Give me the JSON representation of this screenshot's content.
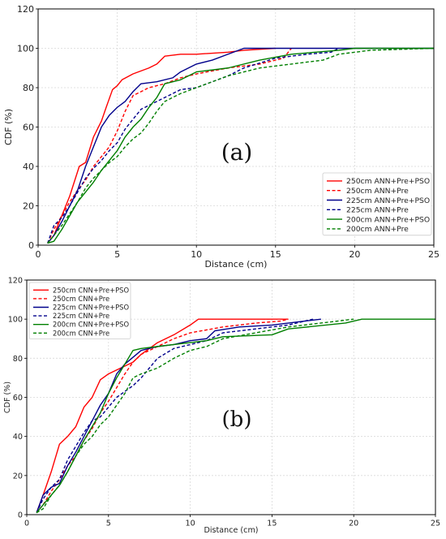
{
  "chart_data": [
    {
      "type": "line",
      "panel_label": "(a)",
      "xlabel": "Distance (cm)",
      "ylabel": "CDF (%)",
      "xlim": [
        0,
        25
      ],
      "ylim": [
        0,
        120
      ],
      "xticks": [
        "0",
        "5",
        "10",
        "15",
        "20",
        "25"
      ],
      "yticks": [
        "0",
        "20",
        "40",
        "60",
        "80",
        "100",
        "120"
      ],
      "grid": true,
      "legend_position": "right",
      "series": [
        {
          "name": "250cm ANN+Pre+PSO",
          "color": "#ff0000",
          "dash": "solid",
          "x": [
            0.6,
            1.0,
            1.5,
            2.0,
            2.6,
            3.0,
            3.5,
            4.0,
            4.3,
            4.7,
            5.0,
            5.3,
            6.0,
            7.0,
            7.5,
            8.0,
            9.0,
            10.0,
            12.0,
            13.0,
            15.0
          ],
          "y": [
            1,
            5,
            15,
            25,
            40,
            42,
            55,
            63,
            70,
            79,
            81,
            84,
            87,
            90,
            92,
            96,
            97,
            97,
            98,
            99,
            100
          ]
        },
        {
          "name": "250cm ANN+Pre",
          "color": "#ff0000",
          "dash": "dashed",
          "x": [
            0.6,
            1.0,
            1.5,
            2.0,
            2.5,
            3.0,
            3.5,
            4.0,
            4.5,
            5.0,
            5.5,
            6.0,
            7.0,
            8.0,
            9.0,
            10.0,
            12.0,
            14.0,
            15.5,
            16.0
          ],
          "y": [
            1,
            8,
            15,
            22,
            28,
            33,
            40,
            45,
            50,
            58,
            68,
            76,
            80,
            82,
            85,
            87,
            90,
            92,
            95,
            100
          ]
        },
        {
          "name": "225cm ANN+Pre+PSO",
          "color": "#00008b",
          "dash": "solid",
          "x": [
            0.6,
            1.0,
            1.5,
            2.0,
            2.5,
            3.0,
            3.5,
            4.0,
            4.5,
            5.0,
            5.5,
            6.0,
            6.5,
            7.5,
            8.5,
            9.0,
            10.0,
            11.0,
            12.0,
            13.0,
            20.0,
            25.0
          ],
          "y": [
            1,
            5,
            12,
            20,
            28,
            40,
            50,
            60,
            66,
            70,
            73,
            78,
            82,
            83,
            85,
            88,
            92,
            94,
            97,
            100,
            100,
            100
          ]
        },
        {
          "name": "225cm ANN+Pre",
          "color": "#00008b",
          "dash": "dashed",
          "x": [
            0.6,
            1.0,
            1.5,
            2.0,
            2.5,
            3.0,
            3.5,
            4.0,
            4.5,
            5.0,
            5.5,
            6.0,
            6.5,
            7.0,
            8.0,
            9.0,
            10.0,
            12.0,
            13.0,
            15.0,
            17.0,
            18.5,
            19.0
          ],
          "y": [
            1,
            10,
            14,
            20,
            27,
            34,
            39,
            43,
            48,
            52,
            59,
            64,
            69,
            71,
            75,
            79,
            80,
            86,
            90,
            95,
            97,
            98,
            100
          ]
        },
        {
          "name": "200cm ANN+Pre+PSO",
          "color": "#007f00",
          "dash": "solid",
          "x": [
            0.6,
            1.0,
            1.5,
            2.0,
            2.5,
            3.0,
            3.5,
            4.0,
            4.5,
            5.0,
            5.5,
            6.0,
            6.5,
            7.0,
            7.5,
            8.0,
            9.0,
            10.0,
            12.0,
            14.0,
            16.0,
            19.0,
            20.0,
            25.0
          ],
          "y": [
            1,
            2,
            8,
            15,
            22,
            27,
            32,
            38,
            43,
            48,
            55,
            60,
            64,
            70,
            75,
            82,
            84,
            88,
            90,
            94,
            97,
            99,
            100,
            100
          ]
        },
        {
          "name": "200cm ANN+Pre",
          "color": "#007f00",
          "dash": "dashed",
          "x": [
            0.6,
            1.0,
            1.5,
            2.0,
            2.5,
            3.0,
            3.5,
            4.0,
            4.5,
            5.0,
            5.5,
            6.0,
            6.5,
            7.0,
            7.5,
            8.0,
            9.0,
            10.0,
            12.0,
            14.0,
            16.0,
            18.0,
            19.0,
            21.0,
            25.0
          ],
          "y": [
            1,
            5,
            10,
            16,
            22,
            29,
            34,
            38,
            42,
            45,
            50,
            54,
            57,
            62,
            68,
            73,
            77,
            80,
            86,
            90,
            92,
            94,
            97,
            99,
            100
          ]
        }
      ]
    },
    {
      "type": "line",
      "panel_label": "(b)",
      "xlabel": "Distance (cm)",
      "ylabel": "CDF (%)",
      "xlim": [
        0,
        25
      ],
      "ylim": [
        0,
        120
      ],
      "xticks": [
        "0",
        "5",
        "10",
        "15",
        "20",
        "25"
      ],
      "yticks": [
        "0",
        "20",
        "40",
        "60",
        "80",
        "100",
        "120"
      ],
      "grid": true,
      "legend_position": "top-left",
      "series": [
        {
          "name": "250cm CNN+Pre+PSO",
          "color": "#ff0000",
          "dash": "solid",
          "x": [
            0.6,
            1.0,
            1.5,
            2.0,
            2.5,
            3.0,
            3.5,
            4.0,
            4.5,
            5.0,
            5.5,
            6.0,
            6.5,
            7.0,
            8.0,
            9.0,
            10.0,
            10.5,
            12.0,
            15.0,
            16.0
          ],
          "y": [
            1,
            10,
            22,
            36,
            40,
            45,
            55,
            60,
            69,
            72,
            74,
            76,
            78,
            82,
            88,
            92,
            97,
            100,
            100,
            100,
            100
          ]
        },
        {
          "name": "250cm CNN+Pre",
          "color": "#ff0000",
          "dash": "dashed",
          "x": [
            0.6,
            1.0,
            1.5,
            2.0,
            2.5,
            3.0,
            3.5,
            4.0,
            4.5,
            5.0,
            5.5,
            6.0,
            6.5,
            7.0,
            8.0,
            9.0,
            10.0,
            12.0,
            14.0,
            15.5,
            16.0
          ],
          "y": [
            1,
            5,
            12,
            18,
            25,
            30,
            38,
            44,
            52,
            58,
            65,
            72,
            78,
            82,
            86,
            90,
            93,
            96,
            98,
            99,
            100
          ]
        },
        {
          "name": "225cm CNN+Pre+PSO",
          "color": "#00008b",
          "dash": "solid",
          "x": [
            0.6,
            1.0,
            1.5,
            2.0,
            2.5,
            3.0,
            3.5,
            4.0,
            4.5,
            5.0,
            5.5,
            6.0,
            7.0,
            8.0,
            9.0,
            10.0,
            11.0,
            11.5,
            13.0,
            15.0,
            17.0,
            18.0
          ],
          "y": [
            1,
            10,
            14,
            16,
            25,
            32,
            40,
            48,
            56,
            62,
            72,
            77,
            84,
            86,
            87,
            89,
            90,
            94,
            96,
            97,
            99,
            100
          ]
        },
        {
          "name": "225cm CNN+Pre",
          "color": "#00008b",
          "dash": "dashed",
          "x": [
            0.6,
            1.0,
            1.5,
            2.0,
            2.5,
            3.0,
            3.5,
            4.0,
            4.5,
            5.0,
            5.5,
            6.0,
            6.5,
            7.0,
            8.0,
            9.0,
            10.0,
            11.0,
            12.0,
            14.0,
            16.0,
            17.5
          ],
          "y": [
            1,
            8,
            14,
            18,
            28,
            35,
            42,
            48,
            50,
            55,
            60,
            63,
            66,
            70,
            80,
            85,
            87,
            89,
            93,
            95,
            97,
            100
          ]
        },
        {
          "name": "200cm CNN+Pre+PSO",
          "color": "#007f00",
          "dash": "solid",
          "x": [
            0.6,
            1.0,
            1.5,
            2.0,
            2.5,
            3.0,
            3.5,
            4.0,
            4.5,
            5.0,
            5.5,
            6.0,
            6.5,
            7.0,
            8.0,
            9.0,
            10.0,
            11.0,
            12.0,
            15.0,
            16.0,
            19.5,
            20.5,
            25.0
          ],
          "y": [
            1,
            5,
            10,
            15,
            22,
            30,
            38,
            45,
            52,
            62,
            70,
            77,
            84,
            85,
            86,
            87,
            88,
            89,
            91,
            92,
            95,
            98,
            100,
            100
          ]
        },
        {
          "name": "200cm CNN+Pre",
          "color": "#007f00",
          "dash": "dashed",
          "x": [
            0.6,
            1.0,
            1.5,
            2.0,
            2.5,
            3.0,
            3.5,
            4.0,
            4.5,
            5.0,
            5.5,
            6.0,
            6.5,
            7.0,
            8.0,
            9.0,
            10.0,
            11.0,
            12.0,
            14.0,
            16.0,
            18.0,
            20.0
          ],
          "y": [
            1,
            3,
            10,
            15,
            22,
            30,
            36,
            40,
            46,
            50,
            56,
            62,
            70,
            72,
            75,
            80,
            84,
            86,
            90,
            93,
            96,
            98,
            100
          ]
        }
      ]
    }
  ]
}
